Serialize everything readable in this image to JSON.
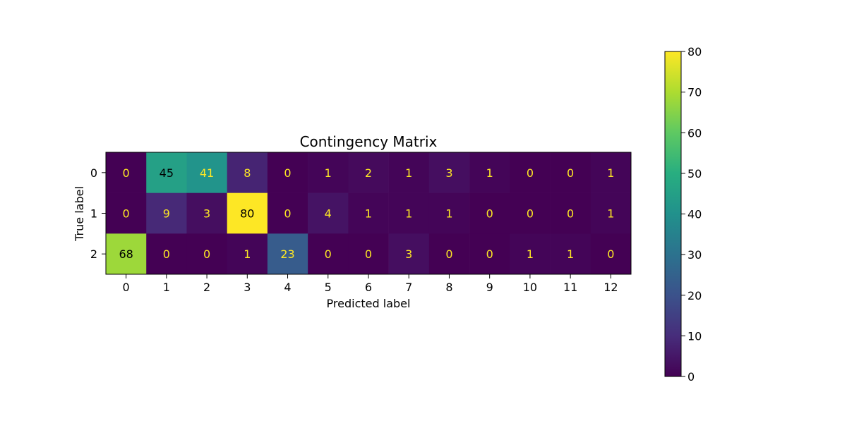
{
  "chart_data": {
    "type": "heatmap",
    "title": "Contingency Matrix",
    "xlabel": "Predicted label",
    "ylabel": "True label",
    "x_categories": [
      "0",
      "1",
      "2",
      "3",
      "4",
      "5",
      "6",
      "7",
      "8",
      "9",
      "10",
      "11",
      "12"
    ],
    "y_categories": [
      "0",
      "1",
      "2"
    ],
    "values": [
      [
        0,
        45,
        41,
        8,
        0,
        1,
        2,
        1,
        3,
        1,
        0,
        0,
        1
      ],
      [
        0,
        9,
        3,
        80,
        0,
        4,
        1,
        1,
        1,
        0,
        0,
        0,
        1
      ],
      [
        68,
        0,
        0,
        1,
        23,
        0,
        0,
        3,
        0,
        0,
        1,
        1,
        0
      ]
    ],
    "colorbar": {
      "min": 0,
      "max": 80,
      "ticks": [
        0,
        10,
        20,
        30,
        40,
        50,
        60,
        70,
        80
      ]
    },
    "colormap": "viridis",
    "grid": false
  }
}
